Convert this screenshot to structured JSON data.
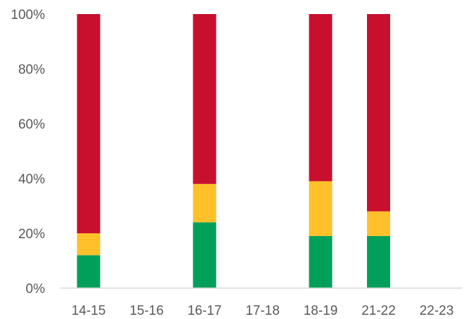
{
  "chart_data": {
    "type": "bar",
    "stacked": true,
    "categories": [
      "14-15",
      "15-16",
      "16-17",
      "17-18",
      "18-19",
      "21-22",
      "22-23"
    ],
    "series": [
      {
        "color": "#00a05a",
        "values": [
          12,
          0,
          24,
          0,
          19,
          19,
          0
        ]
      },
      {
        "color": "#ffc02a",
        "values": [
          8,
          0,
          14,
          0,
          20,
          9,
          0
        ]
      },
      {
        "color": "#c8102e",
        "values": [
          80,
          0,
          62,
          0,
          61,
          72,
          0
        ]
      }
    ],
    "y_ticks": [
      "0%",
      "20%",
      "40%",
      "60%",
      "80%",
      "100%"
    ],
    "ylim": [
      0,
      100
    ],
    "title": "",
    "xlabel": "",
    "ylabel": "",
    "grid": false,
    "axis_color": "#d9d9d9"
  }
}
